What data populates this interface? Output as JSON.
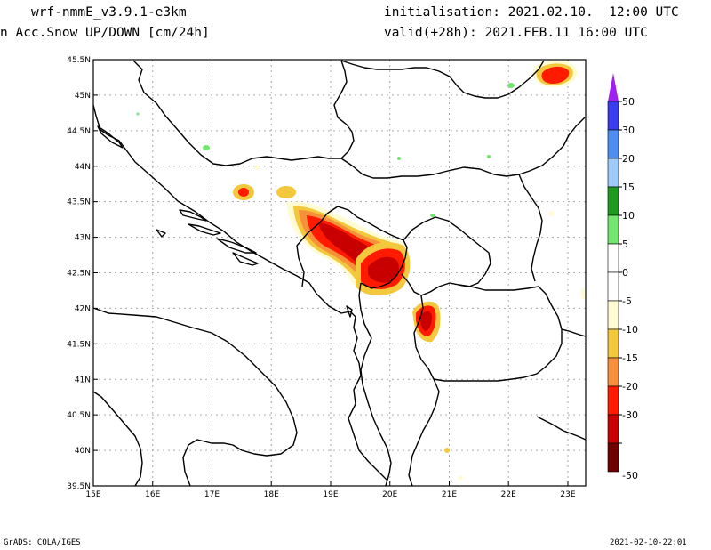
{
  "header": {
    "model": "wrf-nmmE_v3.9.1-e3km",
    "field": "n Acc.Snow UP/DOWN [cm/24h]",
    "init": "initialisation: 2021.02.10.  12:00 UTC",
    "valid": "valid(+28h): 2021.FEB.11 16:00 UTC"
  },
  "footer": {
    "left": "GrADS: COLA/IGES",
    "right": "2021-02-10-22:01"
  },
  "map": {
    "lon_range": [
      15,
      23.3
    ],
    "lat_range": [
      39.5,
      45.5
    ],
    "lon_ticks": [
      {
        "value": 15,
        "label": "15E"
      },
      {
        "value": 16,
        "label": "16E"
      },
      {
        "value": 17,
        "label": "17E"
      },
      {
        "value": 18,
        "label": "18E"
      },
      {
        "value": 19,
        "label": "19E"
      },
      {
        "value": 20,
        "label": "20E"
      },
      {
        "value": 21,
        "label": "21E"
      },
      {
        "value": 22,
        "label": "22E"
      },
      {
        "value": 23,
        "label": "23E"
      }
    ],
    "lat_ticks": [
      {
        "value": 39.5,
        "label": "39.5N"
      },
      {
        "value": 40,
        "label": "40N"
      },
      {
        "value": 40.5,
        "label": "40.5N"
      },
      {
        "value": 41,
        "label": "41N"
      },
      {
        "value": 41.5,
        "label": "41.5N"
      },
      {
        "value": 42,
        "label": "42N"
      },
      {
        "value": 42.5,
        "label": "42.5N"
      },
      {
        "value": 43,
        "label": "43N"
      },
      {
        "value": 43.5,
        "label": "43.5N"
      },
      {
        "value": 44,
        "label": "44N"
      },
      {
        "value": 44.5,
        "label": "44.5N"
      },
      {
        "value": 45,
        "label": "45N"
      },
      {
        "value": 45.5,
        "label": "45.5N"
      }
    ],
    "grid": true
  },
  "colorbar": {
    "top_color": "#a020f0",
    "bottom_color": "#6e0000",
    "segments": [
      {
        "color": "#3a3cf0",
        "label": "50"
      },
      {
        "color": "#4e8ef0",
        "label": "30"
      },
      {
        "color": "#9ecbf7",
        "label": "20"
      },
      {
        "color": "#1e9a1e",
        "label": "15"
      },
      {
        "color": "#72e66e",
        "label": "10"
      },
      {
        "color": "#ffffff",
        "label": "5"
      },
      {
        "color": "#ffffff",
        "label": "0"
      },
      {
        "color": "#fffbd2",
        "label": "-5"
      },
      {
        "color": "#f4c83c",
        "label": "-10"
      },
      {
        "color": "#f7903a",
        "label": "-15"
      },
      {
        "color": "#ff1a00",
        "label": "-20"
      },
      {
        "color": "#c80000",
        "label": "-30"
      },
      {
        "color": "#6e0000",
        "label": "-50"
      }
    ]
  }
}
